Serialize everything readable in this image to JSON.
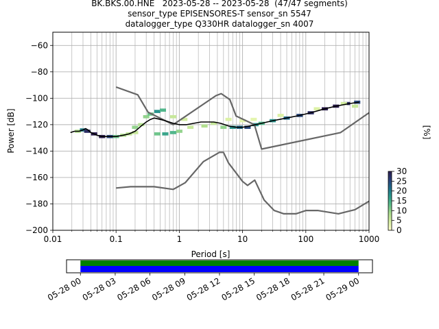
{
  "title_lines": [
    "BK.BKS.00.HNE   2023-05-28 -- 2023-05-28  (47/47 segments)",
    "sensor_type EPISENSORES-T sensor_sn 5547",
    "datalogger_type Q330HR datalogger_sn 4007"
  ],
  "colors": {
    "noise_model": "#666666",
    "mode_line": "#000000",
    "grid": "#b0b0b0",
    "coverage_top": "#008000",
    "coverage_bottom": "#0000ff"
  },
  "chart_data": [
    {
      "type": "heatmap",
      "subtype": "probabilistic power spectral density",
      "xlabel": "Period [s]",
      "ylabel": "Power [dB]",
      "xscale": "log",
      "xlim": [
        0.01,
        1000
      ],
      "ylim": [
        -200,
        -50
      ],
      "x_ticks": [
        {
          "value": 0.01,
          "label": "0.01"
        },
        {
          "value": 0.1,
          "label": "0.1"
        },
        {
          "value": 1,
          "label": "1"
        },
        {
          "value": 10,
          "label": "10"
        },
        {
          "value": 100,
          "label": "100"
        },
        {
          "value": 1000,
          "label": "1000"
        }
      ],
      "y_ticks": [
        {
          "value": -60,
          "label": "−60"
        },
        {
          "value": -80,
          "label": "−80"
        },
        {
          "value": -100,
          "label": "−100"
        },
        {
          "value": -120,
          "label": "−120"
        },
        {
          "value": -140,
          "label": "−140"
        },
        {
          "value": -160,
          "label": "−160"
        },
        {
          "value": -180,
          "label": "−180"
        },
        {
          "value": -200,
          "label": "−200"
        }
      ],
      "grid": true,
      "colorbar": {
        "label": "[%]",
        "range": [
          0,
          30
        ],
        "ticks": [
          {
            "value": 0,
            "label": "0"
          },
          {
            "value": 5,
            "label": "5"
          },
          {
            "value": 10,
            "label": "10"
          },
          {
            "value": 15,
            "label": "15"
          },
          {
            "value": 20,
            "label": "20"
          },
          {
            "value": 25,
            "label": "25"
          },
          {
            "value": 30,
            "label": "30"
          }
        ],
        "colormap": [
          "#ffffcc",
          "#d9f0a3",
          "#addd8e",
          "#5fbf8a",
          "#2c9c8c",
          "#1f6f8b",
          "#2a3f7a",
          "#2d1e4f"
        ]
      },
      "mode": {
        "x": [
          0.019,
          0.022,
          0.026,
          0.03,
          0.033,
          0.036,
          0.04,
          0.045,
          0.05,
          0.06,
          0.07,
          0.08,
          0.1,
          0.13,
          0.16,
          0.2,
          0.25,
          0.3,
          0.35,
          0.4,
          0.5,
          0.6,
          0.8,
          1.0,
          1.3,
          1.7,
          2.2,
          2.8,
          3.5,
          4.5,
          6,
          8,
          10,
          13,
          16,
          20,
          30,
          50,
          80,
          120,
          200,
          300,
          500,
          700
        ],
        "y": [
          -126,
          -125,
          -125,
          -124,
          -123,
          -124,
          -126,
          -127,
          -128,
          -129,
          -129,
          -129,
          -129,
          -128,
          -127,
          -125,
          -121,
          -118,
          -116,
          -115,
          -116,
          -117,
          -119,
          -120,
          -120,
          -119,
          -118,
          -118,
          -118,
          -119,
          -121,
          -122,
          -122,
          -121,
          -120,
          -119,
          -117,
          -115,
          -113,
          -111,
          -108,
          -106,
          -104,
          -103
        ]
      },
      "pdf_cells": [
        {
          "x": 0.025,
          "y": -125,
          "pct": 8
        },
        {
          "x": 0.03,
          "y": -124,
          "pct": 20
        },
        {
          "x": 0.035,
          "y": -125,
          "pct": 28
        },
        {
          "x": 0.045,
          "y": -127,
          "pct": 30
        },
        {
          "x": 0.06,
          "y": -129,
          "pct": 30
        },
        {
          "x": 0.08,
          "y": -129,
          "pct": 25
        },
        {
          "x": 0.1,
          "y": -129,
          "pct": 12
        },
        {
          "x": 0.13,
          "y": -128,
          "pct": 8
        },
        {
          "x": 0.16,
          "y": -127,
          "pct": 7
        },
        {
          "x": 0.2,
          "y": -126,
          "pct": 6
        },
        {
          "x": 0.2,
          "y": -122,
          "pct": 10
        },
        {
          "x": 0.25,
          "y": -120,
          "pct": 8
        },
        {
          "x": 0.3,
          "y": -114,
          "pct": 10
        },
        {
          "x": 0.35,
          "y": -112,
          "pct": 12
        },
        {
          "x": 0.45,
          "y": -110,
          "pct": 18
        },
        {
          "x": 0.55,
          "y": -109,
          "pct": 14
        },
        {
          "x": 0.45,
          "y": -127,
          "pct": 12
        },
        {
          "x": 0.6,
          "y": -127,
          "pct": 16
        },
        {
          "x": 0.8,
          "y": -126,
          "pct": 14
        },
        {
          "x": 1.0,
          "y": -125,
          "pct": 10
        },
        {
          "x": 0.8,
          "y": -114,
          "pct": 6
        },
        {
          "x": 1.2,
          "y": -116,
          "pct": 5
        },
        {
          "x": 1.5,
          "y": -122,
          "pct": 6
        },
        {
          "x": 2.5,
          "y": -121,
          "pct": 8
        },
        {
          "x": 3.5,
          "y": -119,
          "pct": 6
        },
        {
          "x": 5,
          "y": -122,
          "pct": 10
        },
        {
          "x": 7,
          "y": -122,
          "pct": 18
        },
        {
          "x": 9,
          "y": -122,
          "pct": 22
        },
        {
          "x": 12,
          "y": -122,
          "pct": 25
        },
        {
          "x": 16,
          "y": -120,
          "pct": 18
        },
        {
          "x": 20,
          "y": -119,
          "pct": 14
        },
        {
          "x": 30,
          "y": -117,
          "pct": 18
        },
        {
          "x": 50,
          "y": -115,
          "pct": 22
        },
        {
          "x": 80,
          "y": -113,
          "pct": 25
        },
        {
          "x": 120,
          "y": -111,
          "pct": 28
        },
        {
          "x": 200,
          "y": -108,
          "pct": 30
        },
        {
          "x": 300,
          "y": -106,
          "pct": 30
        },
        {
          "x": 450,
          "y": -104,
          "pct": 28
        },
        {
          "x": 650,
          "y": -103,
          "pct": 25
        },
        {
          "x": 6,
          "y": -116,
          "pct": 4
        },
        {
          "x": 10,
          "y": -117,
          "pct": 3
        },
        {
          "x": 15,
          "y": -116,
          "pct": 3
        },
        {
          "x": 40,
          "y": -113,
          "pct": 4
        },
        {
          "x": 150,
          "y": -108,
          "pct": 4
        },
        {
          "x": 400,
          "y": -104,
          "pct": 5
        },
        {
          "x": 600,
          "y": -106,
          "pct": 6
        }
      ],
      "noise_models": [
        {
          "x": [
            0.1,
            0.17,
            0.4,
            0.8,
            1.24,
            2.4,
            4.3,
            5,
            6,
            10,
            12,
            15.6,
            21.9,
            31.6,
            45,
            70,
            101,
            154,
            328,
            600,
            1000
          ],
          "y": [
            -168,
            -167,
            -167,
            -169,
            -164,
            -148,
            -141,
            -141,
            -149,
            -163,
            -166,
            -162,
            -177,
            -185,
            -187.5,
            -187.5,
            -185,
            -185,
            -187.5,
            -184.4,
            -178
          ]
        },
        {
          "x": [
            0.1,
            0.22,
            0.32,
            0.8,
            3.8,
            4.6,
            6.3,
            7.9,
            15.4,
            20,
            354.8,
            1000
          ],
          "y": [
            -91.5,
            -97.4,
            -110.5,
            -120,
            -98,
            -96.5,
            -101,
            -113.5,
            -120,
            -138.5,
            -126,
            -111
          ]
        }
      ]
    },
    {
      "type": "bar",
      "subtype": "data coverage",
      "x_ticks": [
        {
          "value": 0,
          "label": "05-28 00"
        },
        {
          "value": 3,
          "label": "05-28 03"
        },
        {
          "value": 6,
          "label": "05-28 06"
        },
        {
          "value": 9,
          "label": "05-28 09"
        },
        {
          "value": 12,
          "label": "05-28 12"
        },
        {
          "value": 15,
          "label": "05-28 15"
        },
        {
          "value": 18,
          "label": "05-28 18"
        },
        {
          "value": 21,
          "label": "05-28 21"
        },
        {
          "value": 24,
          "label": "05-29 00"
        }
      ],
      "xlim": [
        -1.2,
        25.2
      ],
      "covered_hours": [
        0,
        24
      ]
    }
  ]
}
